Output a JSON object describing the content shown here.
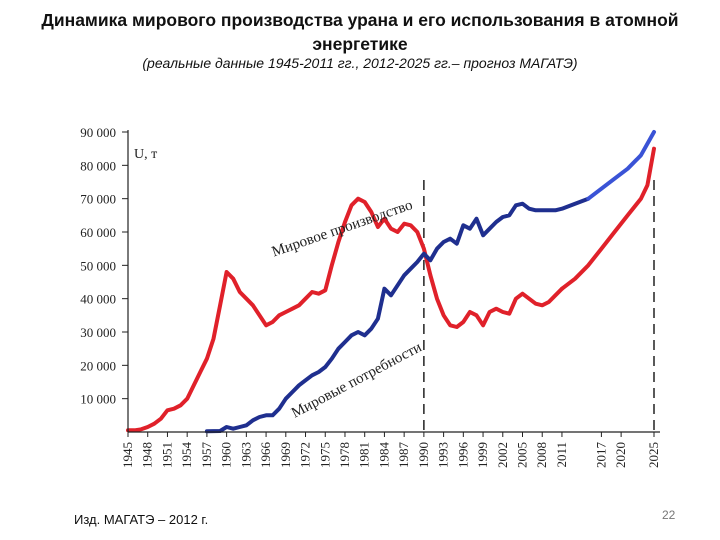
{
  "slide": {
    "title": "Динамика мирового производства урана и его использования в атомной энергетике",
    "subtitle": "(реальные данные 1945-2011 гг., 2012-2025 гг.– прогноз МАГАТЭ)",
    "source": "Изд. МАГАТЭ – 2012 г.",
    "page_number": "22"
  },
  "chart_data": {
    "type": "line",
    "ylabel": "U, т",
    "ylim": [
      0,
      90000
    ],
    "xlim": [
      1945,
      2025
    ],
    "y_ticks": [
      10000,
      20000,
      30000,
      40000,
      50000,
      60000,
      70000,
      80000,
      90000
    ],
    "y_tick_labels": [
      "10 000",
      "20 000",
      "30 000",
      "40 000",
      "50 000",
      "60 000",
      "70 000",
      "80 000",
      "90 000"
    ],
    "x_ticks": [
      1945,
      1948,
      1951,
      1954,
      1957,
      1960,
      1963,
      1966,
      1969,
      1972,
      1975,
      1978,
      1981,
      1984,
      1987,
      1990,
      1993,
      1996,
      1999,
      2002,
      2005,
      2008,
      2011,
      2017,
      2020,
      2025
    ],
    "vertical_markers": [
      1990,
      2025
    ],
    "series": [
      {
        "name": "Мировое производство",
        "color": "#e0212a",
        "forecast_color": "#e0212a",
        "forecast_from": 2011,
        "points": [
          [
            1945,
            500
          ],
          [
            1946,
            500
          ],
          [
            1947,
            800
          ],
          [
            1948,
            1500
          ],
          [
            1949,
            2500
          ],
          [
            1950,
            4000
          ],
          [
            1951,
            6500
          ],
          [
            1952,
            7000
          ],
          [
            1953,
            8000
          ],
          [
            1954,
            10000
          ],
          [
            1955,
            14000
          ],
          [
            1956,
            18000
          ],
          [
            1957,
            22000
          ],
          [
            1958,
            28000
          ],
          [
            1959,
            38000
          ],
          [
            1960,
            48000
          ],
          [
            1961,
            46000
          ],
          [
            1962,
            42000
          ],
          [
            1963,
            40000
          ],
          [
            1964,
            38000
          ],
          [
            1965,
            35000
          ],
          [
            1966,
            32000
          ],
          [
            1967,
            33000
          ],
          [
            1968,
            35000
          ],
          [
            1969,
            36000
          ],
          [
            1970,
            37000
          ],
          [
            1971,
            38000
          ],
          [
            1972,
            40000
          ],
          [
            1973,
            42000
          ],
          [
            1974,
            41500
          ],
          [
            1975,
            42500
          ],
          [
            1976,
            50000
          ],
          [
            1977,
            57000
          ],
          [
            1978,
            63000
          ],
          [
            1979,
            68000
          ],
          [
            1980,
            70000
          ],
          [
            1981,
            69000
          ],
          [
            1982,
            66000
          ],
          [
            1983,
            61500
          ],
          [
            1984,
            64000
          ],
          [
            1985,
            61000
          ],
          [
            1986,
            60000
          ],
          [
            1987,
            62500
          ],
          [
            1988,
            62000
          ],
          [
            1989,
            60000
          ],
          [
            1990,
            55000
          ],
          [
            1991,
            47000
          ],
          [
            1992,
            40000
          ],
          [
            1993,
            35000
          ],
          [
            1994,
            32000
          ],
          [
            1995,
            31500
          ],
          [
            1996,
            33000
          ],
          [
            1997,
            36000
          ],
          [
            1998,
            35000
          ],
          [
            1999,
            32000
          ],
          [
            2000,
            36000
          ],
          [
            2001,
            37000
          ],
          [
            2002,
            36000
          ],
          [
            2003,
            35500
          ],
          [
            2004,
            40000
          ],
          [
            2005,
            41500
          ],
          [
            2006,
            40000
          ],
          [
            2007,
            38500
          ],
          [
            2008,
            38000
          ],
          [
            2009,
            39000
          ],
          [
            2010,
            41000
          ],
          [
            2011,
            43000
          ],
          [
            2013,
            46000
          ],
          [
            2015,
            50000
          ],
          [
            2017,
            55000
          ],
          [
            2019,
            60000
          ],
          [
            2021,
            65000
          ],
          [
            2023,
            70000
          ],
          [
            2024,
            74000
          ],
          [
            2025,
            85000
          ]
        ]
      },
      {
        "name": "Мировые потребности",
        "color": "#1f2f8f",
        "forecast_color": "#3a53d6",
        "forecast_from": 2015,
        "points": [
          [
            1957,
            200
          ],
          [
            1959,
            300
          ],
          [
            1960,
            1500
          ],
          [
            1961,
            1000
          ],
          [
            1962,
            1500
          ],
          [
            1963,
            2000
          ],
          [
            1964,
            3500
          ],
          [
            1965,
            4500
          ],
          [
            1966,
            5000
          ],
          [
            1967,
            5000
          ],
          [
            1968,
            7000
          ],
          [
            1969,
            10000
          ],
          [
            1970,
            12000
          ],
          [
            1971,
            14000
          ],
          [
            1972,
            15500
          ],
          [
            1973,
            17000
          ],
          [
            1974,
            18000
          ],
          [
            1975,
            19500
          ],
          [
            1976,
            22000
          ],
          [
            1977,
            25000
          ],
          [
            1978,
            27000
          ],
          [
            1979,
            29000
          ],
          [
            1980,
            30000
          ],
          [
            1981,
            29000
          ],
          [
            1982,
            31000
          ],
          [
            1983,
            34000
          ],
          [
            1984,
            43000
          ],
          [
            1985,
            41000
          ],
          [
            1986,
            44000
          ],
          [
            1987,
            47000
          ],
          [
            1988,
            49000
          ],
          [
            1989,
            51000
          ],
          [
            1990,
            53500
          ],
          [
            1991,
            51500
          ],
          [
            1992,
            55000
          ],
          [
            1993,
            57000
          ],
          [
            1994,
            58000
          ],
          [
            1995,
            56500
          ],
          [
            1996,
            62000
          ],
          [
            1997,
            61000
          ],
          [
            1998,
            64000
          ],
          [
            1999,
            59000
          ],
          [
            2000,
            61000
          ],
          [
            2001,
            63000
          ],
          [
            2002,
            64500
          ],
          [
            2003,
            65000
          ],
          [
            2004,
            68000
          ],
          [
            2005,
            68500
          ],
          [
            2006,
            67000
          ],
          [
            2007,
            66500
          ],
          [
            2008,
            66500
          ],
          [
            2009,
            66500
          ],
          [
            2010,
            66500
          ],
          [
            2011,
            67000
          ],
          [
            2013,
            68500
          ],
          [
            2015,
            70000
          ],
          [
            2017,
            73000
          ],
          [
            2019,
            76000
          ],
          [
            2021,
            79000
          ],
          [
            2023,
            83000
          ],
          [
            2025,
            90000
          ]
        ]
      }
    ],
    "annotations": [
      "Мировое производство",
      "Мировые потребности"
    ]
  }
}
